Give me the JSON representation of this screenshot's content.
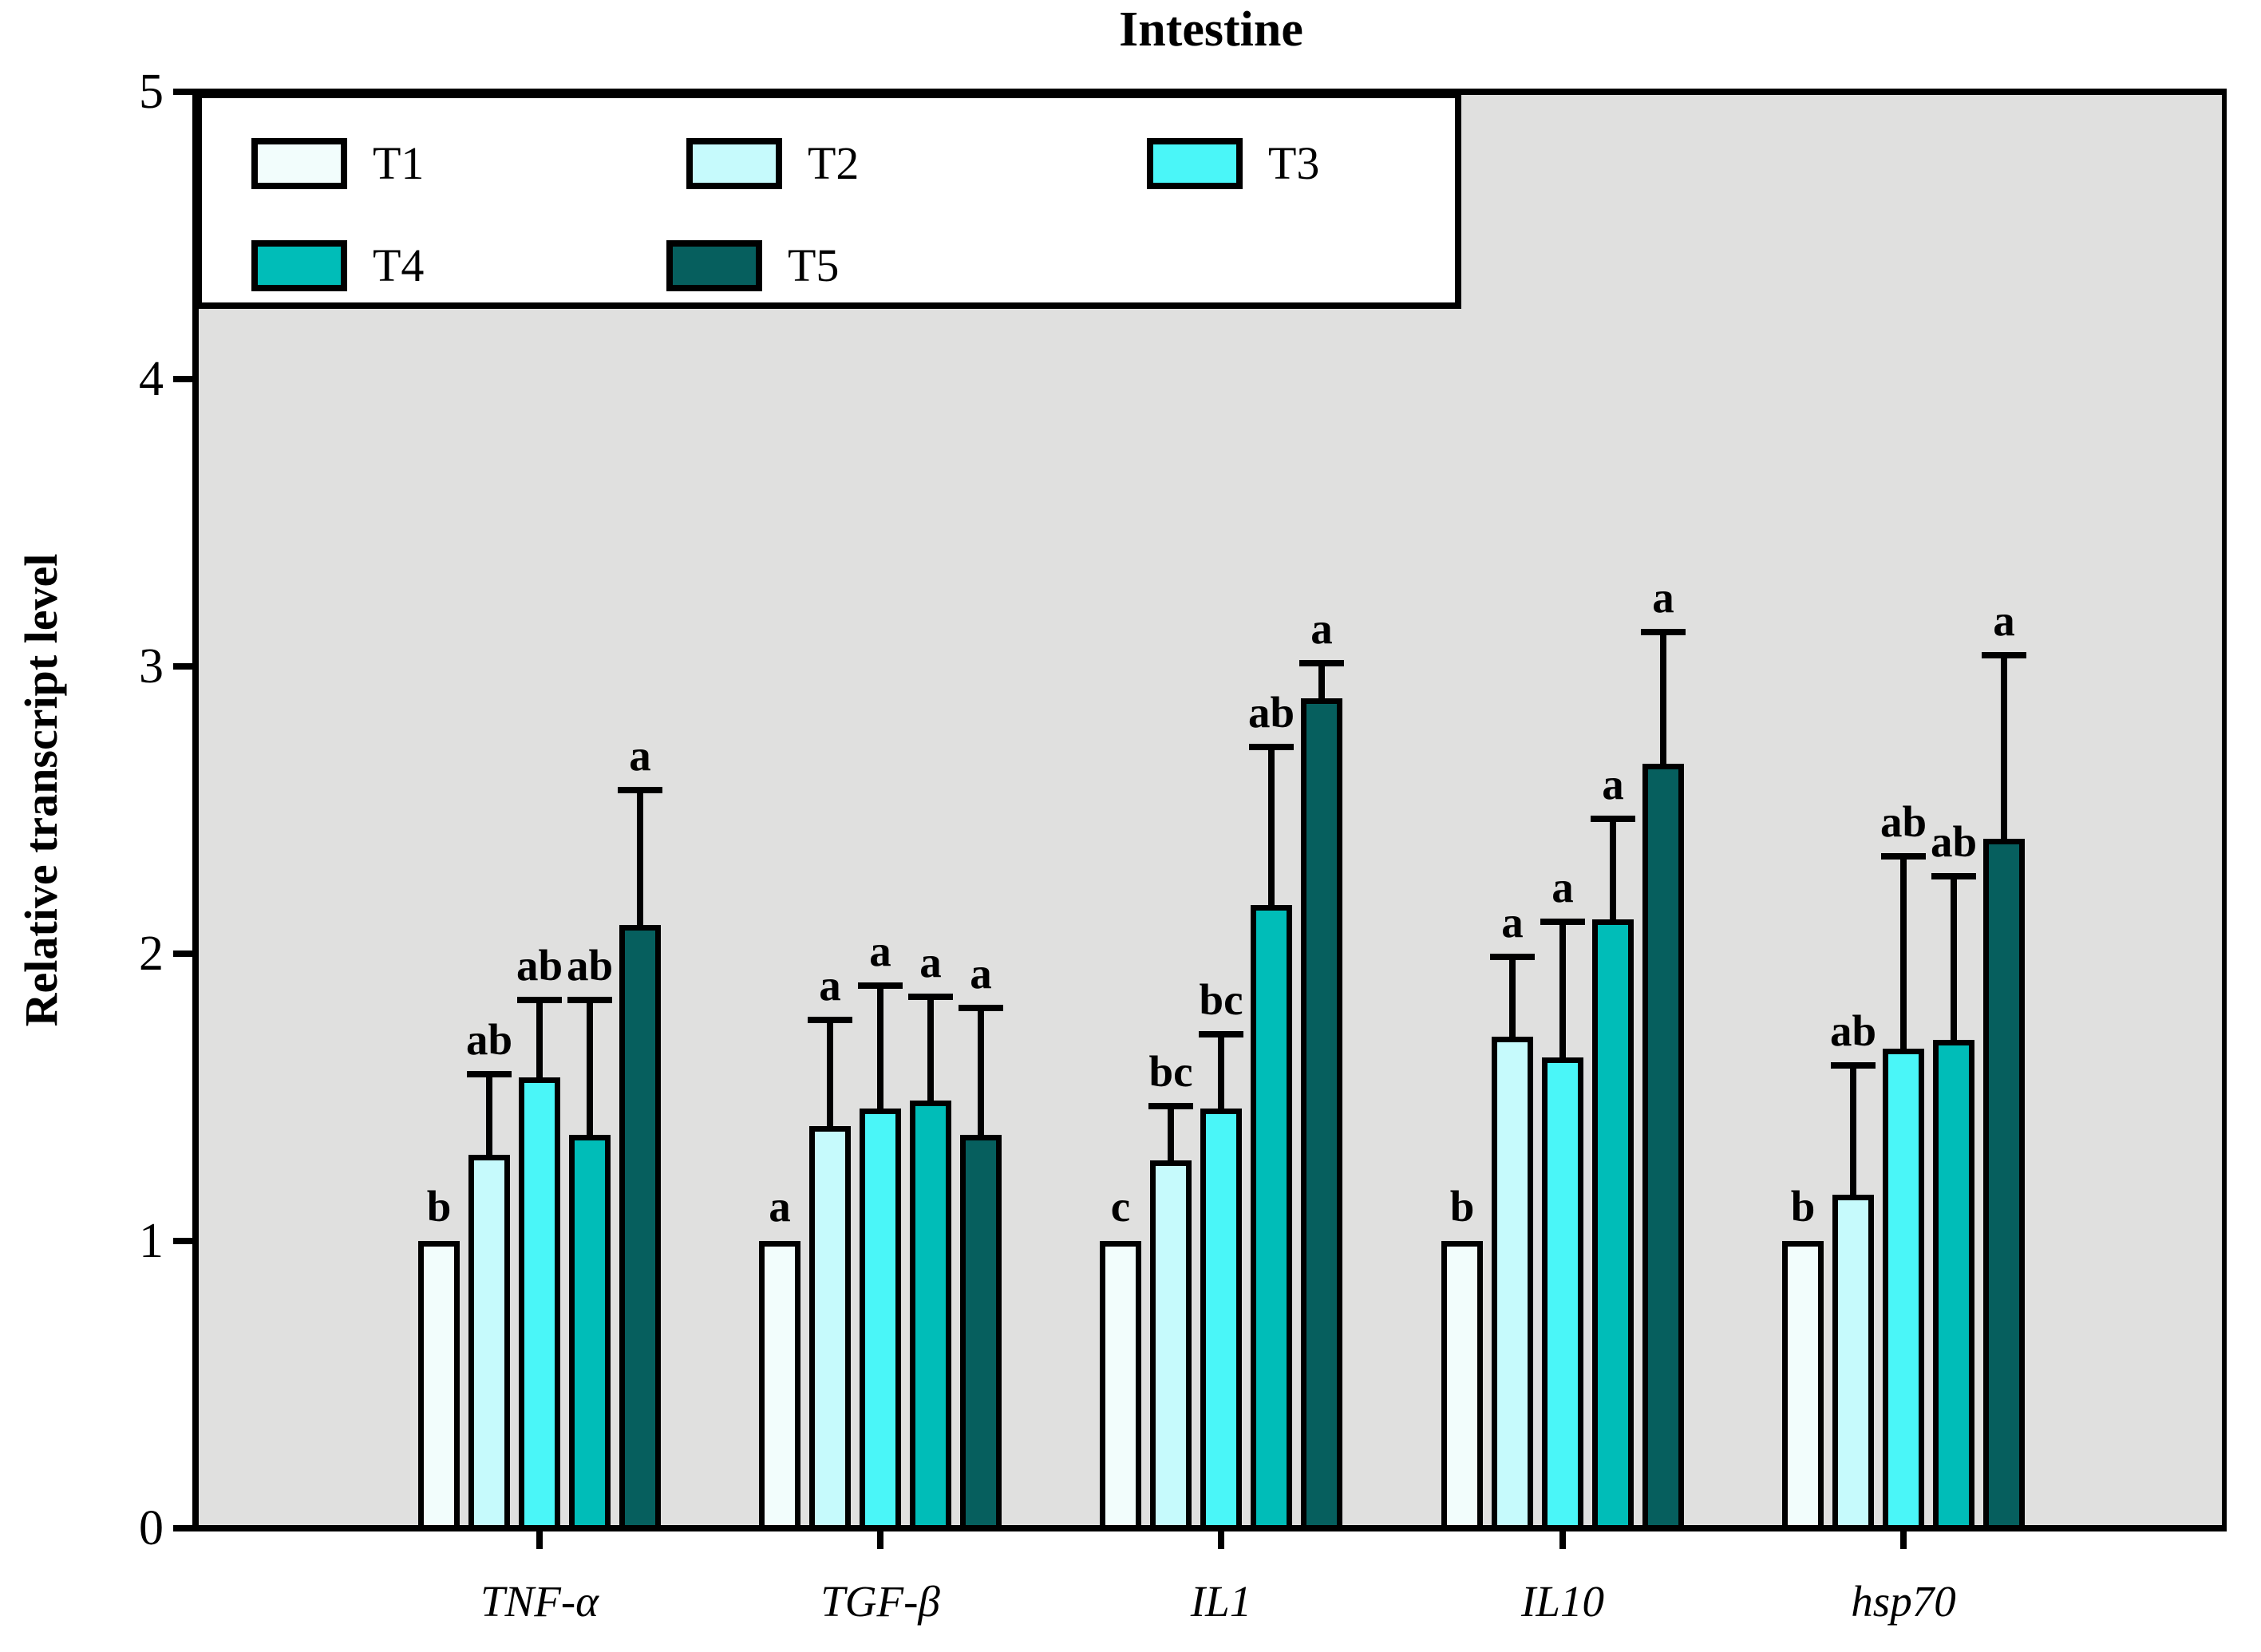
{
  "title": "Intestine",
  "chart_data": {
    "type": "bar",
    "title": "Intestine",
    "xlabel": "",
    "ylabel": "Relative transcript level",
    "ylim": [
      0,
      5
    ],
    "y_ticks": [
      0,
      1,
      2,
      3,
      4,
      5
    ],
    "grid": false,
    "plot_background": "#E0E0DF",
    "legend_position": "top-left-inside",
    "categories": [
      "TNF-α",
      "TGF-β",
      "IL1",
      "IL10",
      "hsp70"
    ],
    "series": [
      {
        "name": "T1",
        "color": "#F2FDFC",
        "values": [
          1.0,
          1.0,
          1.0,
          1.0,
          1.0
        ],
        "errors": [
          0,
          0,
          0,
          0,
          0
        ],
        "letters": [
          "b",
          "a",
          "c",
          "b",
          "b"
        ]
      },
      {
        "name": "T2",
        "color": "#C6FAFC",
        "values": [
          1.3,
          1.4,
          1.28,
          1.71,
          1.16
        ],
        "errors": [
          0.28,
          0.37,
          0.19,
          0.28,
          0.45
        ],
        "letters": [
          "ab",
          "a",
          "bc",
          "a",
          "ab"
        ]
      },
      {
        "name": "T3",
        "color": "#4AF6F8",
        "values": [
          1.57,
          1.46,
          1.46,
          1.64,
          1.67
        ],
        "errors": [
          0.27,
          0.43,
          0.26,
          0.47,
          0.67
        ],
        "letters": [
          "ab",
          "a",
          "bc",
          "a",
          "ab"
        ]
      },
      {
        "name": "T4",
        "color": "#00BDB8",
        "values": [
          1.37,
          1.49,
          2.17,
          2.12,
          1.7
        ],
        "errors": [
          0.47,
          0.36,
          0.55,
          0.35,
          0.57
        ],
        "letters": [
          "ab",
          "a",
          "ab",
          "a",
          "ab"
        ]
      },
      {
        "name": "T5",
        "color": "#065F5E",
        "values": [
          2.1,
          1.37,
          2.89,
          2.66,
          2.4
        ],
        "errors": [
          0.47,
          0.44,
          0.12,
          0.46,
          0.64
        ],
        "letters": [
          "a",
          "a",
          "a",
          "a",
          "a"
        ]
      }
    ]
  }
}
